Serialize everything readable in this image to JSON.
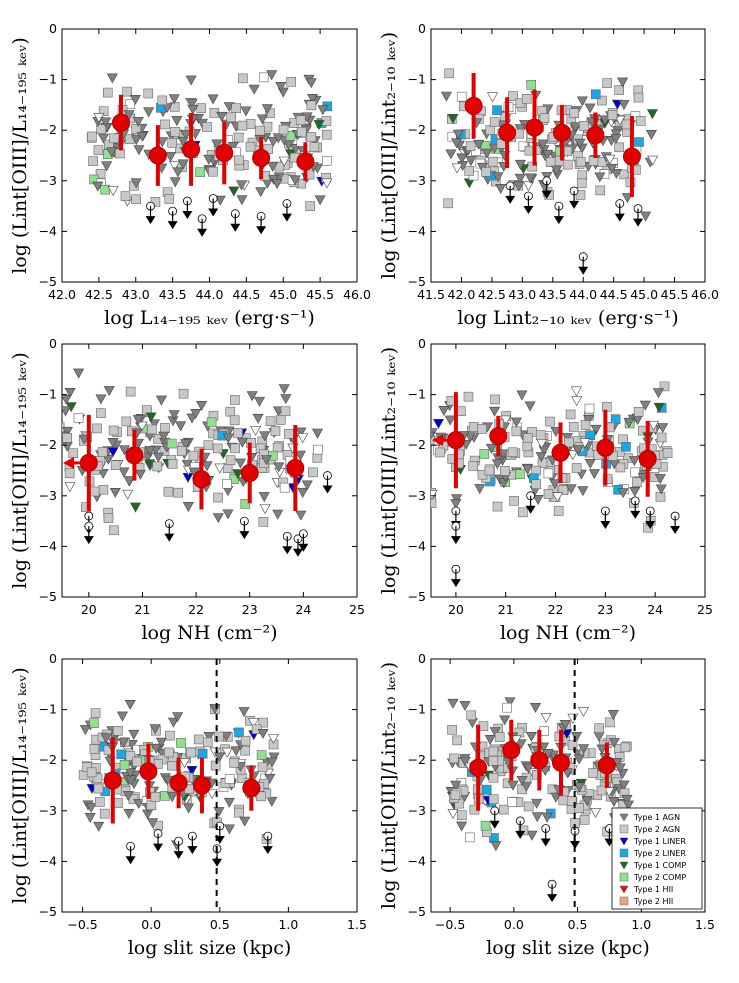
{
  "figure": {
    "legend": [
      {
        "label": "Type 1 AGN",
        "marker": "tri",
        "fill": "#808080"
      },
      {
        "label": "Type 2 AGN",
        "marker": "sq",
        "fill": "#c8c8c8"
      },
      {
        "label": "Type 1 LINER",
        "marker": "tri",
        "fill": "#0000cc"
      },
      {
        "label": "Type 2 LINER",
        "marker": "sq",
        "fill": "#1aa7e6"
      },
      {
        "label": "Type 1 COMP",
        "marker": "tri",
        "fill": "#1e6b1e"
      },
      {
        "label": "Type 2 COMP",
        "marker": "sq",
        "fill": "#90e090"
      },
      {
        "label": "Type 1 HII",
        "marker": "tri",
        "fill": "#e01010"
      },
      {
        "label": "Type 2 HII",
        "marker": "sq",
        "fill": "#f0a080"
      }
    ]
  },
  "chart_data": [
    {
      "type": "scatter",
      "xlabel": "log L₁₄₋₁₉₅ ₖₑᵥ (erg·s⁻¹)",
      "ylabel": "log (Lint[OIII]/L₁₄₋₁₉₅ ₖₑᵥ)",
      "xlim": [
        42.0,
        46.0
      ],
      "ylim": [
        -5,
        0
      ],
      "xticks": [
        "42.0",
        "42.5",
        "43.0",
        "43.5",
        "44.0",
        "44.5",
        "45.0",
        "45.5",
        "46.0"
      ],
      "yticks": [
        "0",
        "−1",
        "−2",
        "−3",
        "−4",
        "−5"
      ],
      "binned_means": {
        "x": [
          42.8,
          43.3,
          43.75,
          44.2,
          44.7,
          45.3
        ],
        "y": [
          -1.85,
          -2.5,
          -2.38,
          -2.45,
          -2.55,
          -2.62
        ],
        "err": [
          0.55,
          0.6,
          0.72,
          0.62,
          0.42,
          0.38
        ]
      },
      "upper_limits": {
        "x": [
          43.2,
          43.5,
          43.7,
          43.9,
          44.05,
          44.35,
          44.7,
          45.05
        ],
        "y": [
          -3.5,
          -3.6,
          -3.4,
          -3.75,
          -3.35,
          -3.65,
          -3.7,
          -3.45
        ]
      },
      "dashed_vline": null
    },
    {
      "type": "scatter",
      "xlabel": "log Lint₂₋₁₀ ₖₑᵥ (erg·s⁻¹)",
      "ylabel": "log (Lint[OIII]/Lint₂₋₁₀ ₖₑᵥ)",
      "xlim": [
        41.5,
        46.0
      ],
      "ylim": [
        -5,
        0
      ],
      "xticks": [
        "41.5",
        "42.0",
        "42.5",
        "43.0",
        "43.5",
        "44.0",
        "44.5",
        "45.0",
        "45.5",
        "46.0"
      ],
      "yticks": [
        "0",
        "−1",
        "−2",
        "−3",
        "−4",
        "−5"
      ],
      "binned_means": {
        "x": [
          42.2,
          42.75,
          43.2,
          43.65,
          44.2,
          44.8
        ],
        "y": [
          -1.52,
          -2.05,
          -1.95,
          -2.05,
          -2.1,
          -2.52
        ],
        "err": [
          0.65,
          0.7,
          0.75,
          0.55,
          0.45,
          0.8
        ]
      },
      "upper_limits": {
        "x": [
          42.8,
          43.1,
          43.4,
          43.6,
          43.85,
          44.0,
          44.6,
          44.9
        ],
        "y": [
          -3.1,
          -3.3,
          -3.0,
          -3.5,
          -3.2,
          -4.5,
          -3.45,
          -3.55
        ]
      },
      "dashed_vline": null
    },
    {
      "type": "scatter",
      "xlabel": "log NH (cm⁻²)",
      "ylabel": "log (Lint[OIII]/L₁₄₋₁₉₅ ₖₑᵥ)",
      "xlim": [
        19.5,
        25
      ],
      "ylim": [
        -5,
        0
      ],
      "xticks": [
        "20",
        "21",
        "22",
        "23",
        "24",
        "25"
      ],
      "yticks": [
        "0",
        "−1",
        "−2",
        "−3",
        "−4",
        "−5"
      ],
      "binned_means": {
        "x": [
          20.0,
          20.85,
          22.1,
          23.0,
          23.85
        ],
        "y": [
          -2.35,
          -2.2,
          -2.67,
          -2.55,
          -2.45
        ],
        "err": [
          0.95,
          0.5,
          0.6,
          0.6,
          0.85
        ]
      },
      "upper_limits": {
        "x": [
          20.0,
          20.0,
          21.5,
          22.9,
          23.7,
          23.9,
          24.0,
          24.45
        ],
        "y": [
          -3.4,
          -3.6,
          -3.55,
          -3.5,
          -3.8,
          -3.85,
          -3.75,
          -2.6
        ]
      },
      "dashed_vline": null
    },
    {
      "type": "scatter",
      "xlabel": "log NH (cm⁻²)",
      "ylabel": "log (Lint[OIII]/Lint₂₋₁₀ ₖₑᵥ)",
      "xlim": [
        19.5,
        25
      ],
      "ylim": [
        -5,
        0
      ],
      "xticks": [
        "20",
        "21",
        "22",
        "23",
        "24",
        "25"
      ],
      "yticks": [
        "0",
        "−1",
        "−2",
        "−3",
        "−4",
        "−5"
      ],
      "binned_means": {
        "x": [
          20.0,
          20.85,
          22.1,
          23.0,
          23.85
        ],
        "y": [
          -1.9,
          -1.82,
          -2.15,
          -2.05,
          -2.27
        ],
        "err": [
          0.95,
          0.4,
          0.6,
          0.75,
          0.75
        ]
      },
      "upper_limits": {
        "x": [
          20.0,
          20.0,
          20.0,
          21.5,
          23.0,
          23.9,
          24.4,
          23.6
        ],
        "y": [
          -3.3,
          -3.6,
          -4.45,
          -3.0,
          -3.3,
          -3.3,
          -3.4,
          -3.1
        ]
      },
      "dashed_vline": null
    },
    {
      "type": "scatter",
      "xlabel": "log slit size (kpc)",
      "ylabel": "log (Lint[OIII]/L₁₄₋₁₉₅ ₖₑᵥ)",
      "xlim": [
        -0.65,
        1.5
      ],
      "ylim": [
        -5,
        0
      ],
      "xticks": [
        "−0.5",
        "0.0",
        "0.5",
        "1.0",
        "1.5"
      ],
      "yticks": [
        "0",
        "−1",
        "−2",
        "−3",
        "−4",
        "−5"
      ],
      "binned_means": {
        "x": [
          -0.28,
          -0.02,
          0.2,
          0.37,
          0.73
        ],
        "y": [
          -2.4,
          -2.22,
          -2.45,
          -2.5,
          -2.55
        ],
        "err": [
          0.85,
          0.55,
          0.5,
          0.55,
          0.45
        ]
      },
      "upper_limits": {
        "x": [
          -0.15,
          0.05,
          0.2,
          0.3,
          0.48,
          0.5,
          0.85
        ],
        "y": [
          -3.7,
          -3.45,
          -3.6,
          -3.5,
          -3.75,
          -3.3,
          -3.5
        ]
      },
      "dashed_vline": 0.477
    },
    {
      "type": "scatter",
      "xlabel": "log slit size (kpc)",
      "ylabel": "log (Lint[OIII]/Lint₂₋₁₀ ₖₑᵥ)",
      "xlim": [
        -0.65,
        1.5
      ],
      "ylim": [
        -5,
        0
      ],
      "xticks": [
        "−0.5",
        "0.0",
        "0.5",
        "1.0",
        "1.5"
      ],
      "yticks": [
        "0",
        "−1",
        "−2",
        "−3",
        "−4",
        "−5"
      ],
      "binned_means": {
        "x": [
          -0.28,
          -0.02,
          0.2,
          0.37,
          0.73
        ],
        "y": [
          -2.15,
          -1.8,
          -2.0,
          -2.05,
          -2.1
        ],
        "err": [
          0.85,
          0.6,
          0.6,
          0.65,
          0.45
        ]
      },
      "upper_limits": {
        "x": [
          -0.15,
          0.05,
          0.25,
          0.3,
          0.48,
          0.75
        ],
        "y": [
          -3.0,
          -3.2,
          -3.35,
          -4.45,
          -3.4,
          -3.35
        ]
      },
      "dashed_vline": 0.477,
      "legend_placement": "lower-right"
    }
  ]
}
